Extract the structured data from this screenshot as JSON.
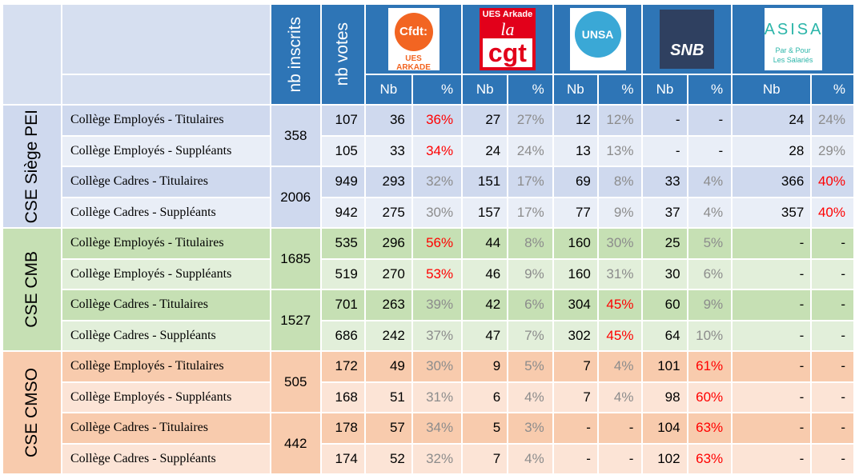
{
  "header": {
    "inscrits": "nb inscrits",
    "votes": "nb votes",
    "nb": "Nb",
    "pct": "%",
    "unions": [
      {
        "logo": [
          "Cfdt:",
          "UES ARKADE"
        ]
      },
      {
        "logo": [
          "UES Arkade",
          "la",
          "cgt"
        ]
      },
      {
        "logo": [
          "UNSA"
        ]
      },
      {
        "logo": [
          "SNB"
        ]
      },
      {
        "logo": [
          "ASISA",
          "Par & Pour",
          "Les Salariés"
        ]
      }
    ]
  },
  "table": {
    "groups": [
      {
        "label": "CSE Siège PEI",
        "colors": [
          "#cfd9ee",
          "#e9eef7"
        ],
        "inscrits": [
          "358",
          "2006"
        ],
        "rows": [
          {
            "college": "Collège Employés - Titulaires",
            "votes": "107",
            "cells": [
              [
                "36",
                "36%"
              ],
              [
                "27",
                "27%"
              ],
              [
                "12",
                "12%"
              ],
              [
                "-",
                "-"
              ],
              [
                "24",
                "24%"
              ]
            ],
            "highlight": 0
          },
          {
            "college": "Collège Employés - Suppléants",
            "votes": "105",
            "cells": [
              [
                "33",
                "34%"
              ],
              [
                "24",
                "24%"
              ],
              [
                "13",
                "13%"
              ],
              [
                "-",
                "-"
              ],
              [
                "28",
                "29%"
              ]
            ],
            "highlight": 0
          },
          {
            "college": "Collège Cadres - Titulaires",
            "votes": "949",
            "cells": [
              [
                "293",
                "32%"
              ],
              [
                "151",
                "17%"
              ],
              [
                "69",
                "8%"
              ],
              [
                "33",
                "4%"
              ],
              [
                "366",
                "40%"
              ]
            ],
            "highlight": 4
          },
          {
            "college": "Collège Cadres - Suppléants",
            "votes": "942",
            "cells": [
              [
                "275",
                "30%"
              ],
              [
                "157",
                "17%"
              ],
              [
                "77",
                "9%"
              ],
              [
                "37",
                "4%"
              ],
              [
                "357",
                "40%"
              ]
            ],
            "highlight": 4
          }
        ]
      },
      {
        "label": "CSE CMB",
        "colors": [
          "#c6e0b4",
          "#e2efda"
        ],
        "inscrits": [
          "1685",
          "1527"
        ],
        "rows": [
          {
            "college": "Collège Employés - Titulaires",
            "votes": "535",
            "cells": [
              [
                "296",
                "56%"
              ],
              [
                "44",
                "8%"
              ],
              [
                "160",
                "30%"
              ],
              [
                "25",
                "5%"
              ],
              [
                "-",
                "-"
              ]
            ],
            "highlight": 0
          },
          {
            "college": "Collège Employés - Suppléants",
            "votes": "519",
            "cells": [
              [
                "270",
                "53%"
              ],
              [
                "46",
                "9%"
              ],
              [
                "160",
                "31%"
              ],
              [
                "30",
                "6%"
              ],
              [
                "-",
                "-"
              ]
            ],
            "highlight": 0
          },
          {
            "college": "Collège Cadres - Titulaires",
            "votes": "701",
            "cells": [
              [
                "263",
                "39%"
              ],
              [
                "42",
                "6%"
              ],
              [
                "304",
                "45%"
              ],
              [
                "60",
                "9%"
              ],
              [
                "-",
                "-"
              ]
            ],
            "highlight": 2
          },
          {
            "college": "Collège Cadres - Suppléants",
            "votes": "686",
            "cells": [
              [
                "242",
                "37%"
              ],
              [
                "47",
                "7%"
              ],
              [
                "302",
                "45%"
              ],
              [
                "64",
                "10%"
              ],
              [
                "-",
                "-"
              ]
            ],
            "highlight": 2
          }
        ]
      },
      {
        "label": "CSE CMSO",
        "colors": [
          "#f8cbad",
          "#fce4d6"
        ],
        "inscrits": [
          "505",
          "442"
        ],
        "rows": [
          {
            "college": "Collège Employés - Titulaires",
            "votes": "172",
            "cells": [
              [
                "49",
                "30%"
              ],
              [
                "9",
                "5%"
              ],
              [
                "7",
                "4%"
              ],
              [
                "101",
                "61%"
              ],
              [
                "-",
                "-"
              ]
            ],
            "highlight": 3
          },
          {
            "college": "Collège Employés - Suppléants",
            "votes": "168",
            "cells": [
              [
                "51",
                "31%"
              ],
              [
                "6",
                "4%"
              ],
              [
                "7",
                "4%"
              ],
              [
                "98",
                "60%"
              ],
              [
                "-",
                "-"
              ]
            ],
            "highlight": 3
          },
          {
            "college": "Collège Cadres - Titulaires",
            "votes": "178",
            "cells": [
              [
                "57",
                "34%"
              ],
              [
                "5",
                "3%"
              ],
              [
                "-",
                "-"
              ],
              [
                "104",
                "63%"
              ],
              [
                "-",
                "-"
              ]
            ],
            "highlight": 3
          },
          {
            "college": "Collège Cadres - Suppléants",
            "votes": "174",
            "cells": [
              [
                "52",
                "32%"
              ],
              [
                "7",
                "4%"
              ],
              [
                "-",
                "-"
              ],
              [
                "102",
                "63%"
              ],
              [
                "-",
                "-"
              ]
            ],
            "highlight": 3
          }
        ]
      }
    ]
  }
}
